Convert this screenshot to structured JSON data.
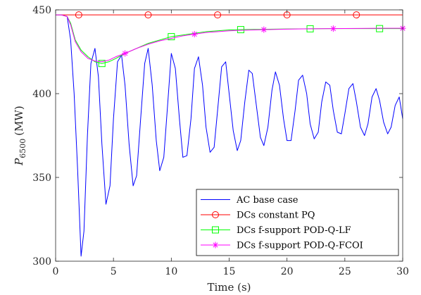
{
  "chart_data": {
    "type": "line",
    "xlabel": "Time (s)",
    "ylabel_main": "P",
    "ylabel_sub": "6500",
    "ylabel_unit": "(MW)",
    "xlim": [
      0,
      30
    ],
    "ylim": [
      300,
      450
    ],
    "xticks": [
      0,
      5,
      10,
      15,
      20,
      25,
      30
    ],
    "yticks": [
      300,
      350,
      400,
      450
    ],
    "grid": false,
    "legend_position": "bottom-right",
    "series": [
      {
        "name": "AC base case",
        "color": "#0000ff",
        "marker": "none",
        "x": [
          0,
          0.5,
          1.0,
          1.3,
          1.6,
          1.9,
          2.2,
          2.45,
          2.75,
          3.05,
          3.4,
          3.7,
          4.0,
          4.35,
          4.7,
          5.0,
          5.35,
          5.7,
          6.0,
          6.35,
          6.7,
          7.0,
          7.35,
          7.7,
          8.0,
          8.35,
          8.7,
          9.0,
          9.35,
          9.7,
          10.0,
          10.35,
          10.7,
          11.0,
          11.35,
          11.7,
          12.0,
          12.35,
          12.7,
          13.0,
          13.35,
          13.7,
          14.0,
          14.35,
          14.7,
          15.0,
          15.35,
          15.7,
          16.0,
          16.35,
          16.7,
          17.0,
          17.35,
          17.7,
          18.0,
          18.35,
          18.7,
          19.0,
          19.35,
          19.7,
          20.0,
          20.35,
          20.7,
          21.0,
          21.35,
          21.7,
          22.0,
          22.35,
          22.7,
          23.0,
          23.35,
          23.7,
          24.0,
          24.35,
          24.7,
          25.0,
          25.35,
          25.7,
          26.0,
          26.35,
          26.7,
          27.0,
          27.35,
          27.7,
          28.0,
          28.35,
          28.7,
          29.0,
          29.35,
          29.7,
          30.0
        ],
        "y": [
          447,
          447,
          446,
          432,
          400,
          355,
          303,
          318,
          375,
          418,
          427,
          410,
          370,
          334,
          345,
          385,
          419,
          423,
          405,
          370,
          345,
          351,
          385,
          418,
          427,
          405,
          372,
          354,
          362,
          395,
          424,
          415,
          385,
          362,
          363,
          385,
          415,
          422,
          405,
          380,
          365,
          368,
          390,
          416,
          419,
          400,
          378,
          366,
          372,
          395,
          414,
          412,
          393,
          374,
          369,
          380,
          402,
          413,
          405,
          385,
          372,
          372,
          390,
          408,
          411,
          400,
          382,
          373,
          377,
          395,
          407,
          405,
          390,
          377,
          376,
          388,
          403,
          406,
          395,
          380,
          375,
          382,
          398,
          403,
          396,
          383,
          376,
          380,
          393,
          398,
          385
        ]
      },
      {
        "name": "DCs constant PQ",
        "color": "#ff0000",
        "marker": "circle",
        "x": [
          0,
          30
        ],
        "y": [
          447,
          447
        ],
        "marker_x": [
          2,
          8,
          14,
          20,
          26
        ],
        "marker_y": [
          447,
          447,
          447,
          447,
          447
        ]
      },
      {
        "name": "DCs f-support POD-Q-LF",
        "color": "#00ff00",
        "marker": "square",
        "x": [
          0,
          0.5,
          1.0,
          1.3,
          1.7,
          2.2,
          2.8,
          3.4,
          4.0,
          4.6,
          5.2,
          6.0,
          7.0,
          8.0,
          9.0,
          10.0,
          11.0,
          12.0,
          13.0,
          14.0,
          15.0,
          16.0,
          18.0,
          20.0,
          22.0,
          24.0,
          26.0,
          28.0,
          30.0
        ],
        "y": [
          447,
          447,
          446,
          442,
          432,
          426,
          422,
          419,
          418,
          419,
          421,
          424,
          427,
          430,
          432,
          434,
          435,
          436,
          437,
          437.5,
          438,
          438.2,
          438.4,
          438.6,
          438.7,
          438.8,
          438.8,
          438.8,
          438.8
        ],
        "marker_x": [
          4,
          10,
          16,
          22,
          28
        ],
        "marker_y": [
          418,
          434,
          438.2,
          438.7,
          438.8
        ]
      },
      {
        "name": "DCs f-support POD-Q-FCOI",
        "color": "#ff00ff",
        "marker": "star",
        "x": [
          0,
          0.5,
          1.0,
          1.3,
          1.7,
          2.2,
          2.8,
          3.4,
          4.0,
          4.6,
          5.2,
          6.0,
          7.0,
          8.0,
          9.0,
          10.0,
          11.0,
          12.0,
          13.0,
          14.0,
          15.0,
          16.0,
          18.0,
          20.0,
          22.0,
          24.0,
          26.0,
          28.0,
          30.0
        ],
        "y": [
          447,
          447,
          446,
          441,
          431,
          425,
          421,
          419.5,
          419,
          420,
          422,
          424,
          427,
          429.5,
          431.5,
          433,
          434.5,
          435.5,
          436.5,
          437,
          437.5,
          437.8,
          438.2,
          438.5,
          438.7,
          438.8,
          438.9,
          439,
          439
        ],
        "marker_x": [
          6,
          12,
          18,
          24,
          30
        ],
        "marker_y": [
          424,
          435.5,
          438.2,
          438.8,
          439
        ]
      }
    ]
  }
}
